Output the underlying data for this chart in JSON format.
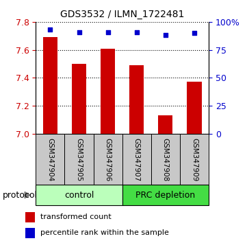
{
  "title": "GDS3532 / ILMN_1722481",
  "categories": [
    "GSM347904",
    "GSM347905",
    "GSM347906",
    "GSM347907",
    "GSM347908",
    "GSM347909"
  ],
  "bar_values": [
    7.69,
    7.5,
    7.61,
    7.49,
    7.13,
    7.37
  ],
  "scatter_values": [
    93,
    91,
    91,
    91,
    88,
    90
  ],
  "ylim_left": [
    7.0,
    7.8
  ],
  "ylim_right": [
    0,
    100
  ],
  "yticks_left": [
    7.0,
    7.2,
    7.4,
    7.6,
    7.8
  ],
  "yticks_right": [
    0,
    25,
    50,
    75,
    100
  ],
  "bar_color": "#cc0000",
  "scatter_color": "#0000cc",
  "bar_bottom": 7.0,
  "groups": [
    {
      "label": "control",
      "indices": [
        0,
        1,
        2
      ],
      "color": "#bbffbb"
    },
    {
      "label": "PRC depletion",
      "indices": [
        3,
        4,
        5
      ],
      "color": "#44dd44"
    }
  ],
  "group_label": "protocol",
  "legend_bar_label": "transformed count",
  "legend_scatter_label": "percentile rank within the sample",
  "background_color": "#ffffff",
  "tick_label_color_left": "#cc0000",
  "tick_label_color_right": "#0000cc",
  "xlabel_area_color": "#c8c8c8",
  "figsize": [
    3.61,
    3.54
  ],
  "dpi": 100
}
